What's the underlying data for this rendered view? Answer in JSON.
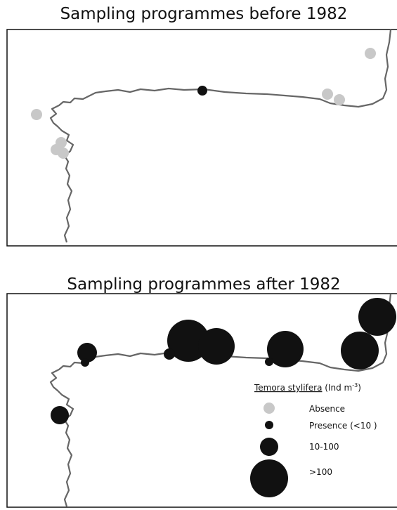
{
  "maps": [
    {
      "title": "Sampling programmes before 1982"
    },
    {
      "title": "Sampling programmes after 1982"
    }
  ],
  "legend": {
    "species": "Temora stylifera",
    "unit": "(Ind m",
    "unit_exponent": "-3",
    "unit_close": ")",
    "items": [
      "Absence",
      "Presence (<10 )",
      "10-100",
      ">100"
    ]
  }
}
